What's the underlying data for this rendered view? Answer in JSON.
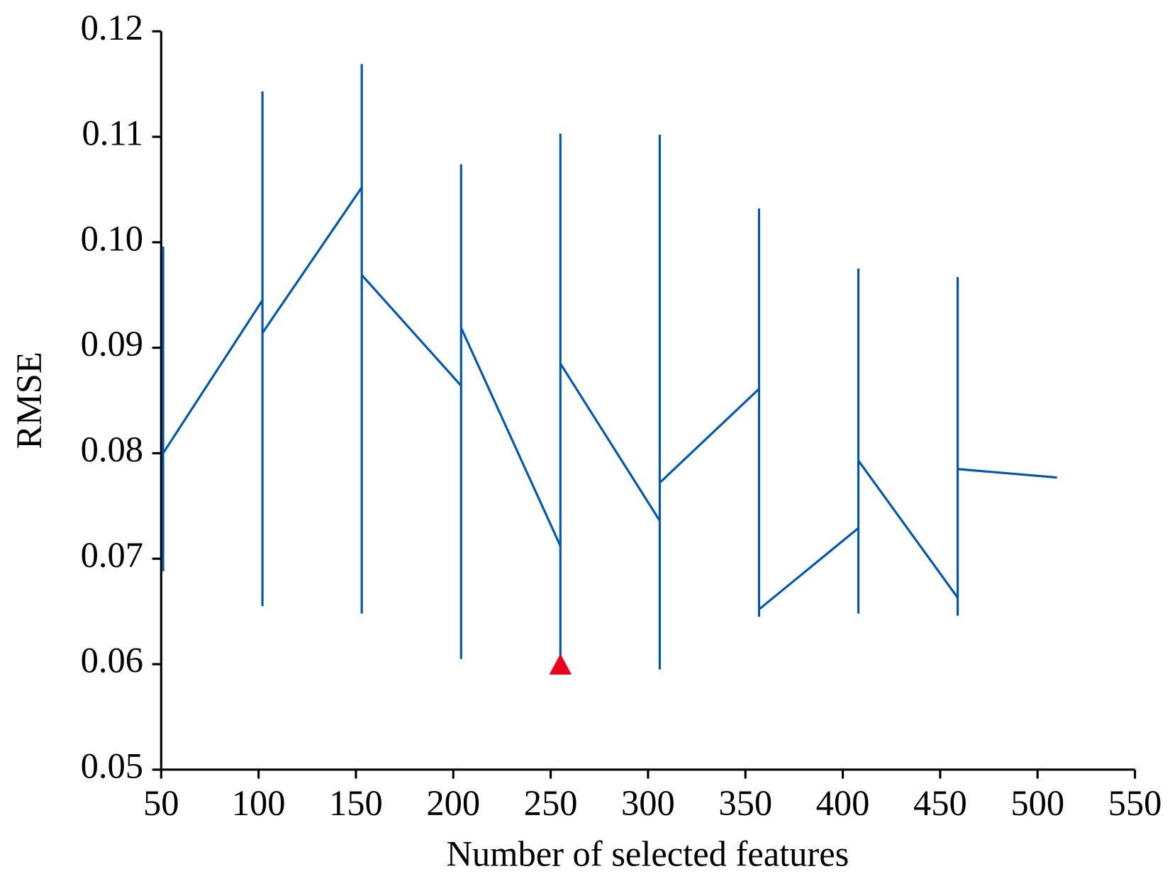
{
  "chart_data": {
    "type": "line",
    "xlabel": "Number of selected features",
    "ylabel": "RMSE",
    "xlim": [
      50,
      550
    ],
    "ylim": [
      0.05,
      0.12
    ],
    "xticks": [
      50,
      100,
      150,
      200,
      250,
      300,
      350,
      400,
      450,
      500,
      550
    ],
    "yticks": [
      0.05,
      0.06,
      0.07,
      0.08,
      0.09,
      {
        "value": 0.1,
        "label": "0.10"
      },
      0.11,
      0.12
    ],
    "color": "#0057a8",
    "segments": [
      {
        "x": [
          51,
          102
        ],
        "values": [
          0.08,
          0.0945
        ]
      },
      {
        "x": [
          102,
          153
        ],
        "values": [
          0.0914,
          0.1052
        ]
      },
      {
        "x": [
          153,
          204
        ],
        "values": [
          0.0969,
          0.0864
        ]
      },
      {
        "x": [
          204,
          255
        ],
        "values": [
          0.0919,
          0.0712
        ]
      },
      {
        "x": [
          255,
          306
        ],
        "values": [
          0.0885,
          0.0736
        ]
      },
      {
        "x": [
          306,
          357
        ],
        "values": [
          0.0772,
          0.0861
        ]
      },
      {
        "x": [
          357,
          408
        ],
        "values": [
          0.0652,
          0.0729
        ]
      },
      {
        "x": [
          408,
          459
        ],
        "values": [
          0.0793,
          0.0663
        ]
      },
      {
        "x": [
          459,
          510
        ],
        "values": [
          0.0785,
          0.0777
        ]
      }
    ],
    "error_bars": {
      "x": [
        51,
        102,
        153,
        204,
        255,
        306,
        357,
        408,
        459
      ],
      "low": [
        0.0688,
        0.0655,
        0.0648,
        0.0605,
        0.0598,
        0.0595,
        0.0645,
        0.0648,
        0.0646
      ],
      "high": [
        0.0996,
        0.1143,
        0.1169,
        0.1074,
        0.1103,
        0.1102,
        0.1032,
        0.0975,
        0.0967
      ]
    },
    "marker": {
      "x": 255,
      "y": 0.06,
      "color": "#e8001c"
    }
  }
}
